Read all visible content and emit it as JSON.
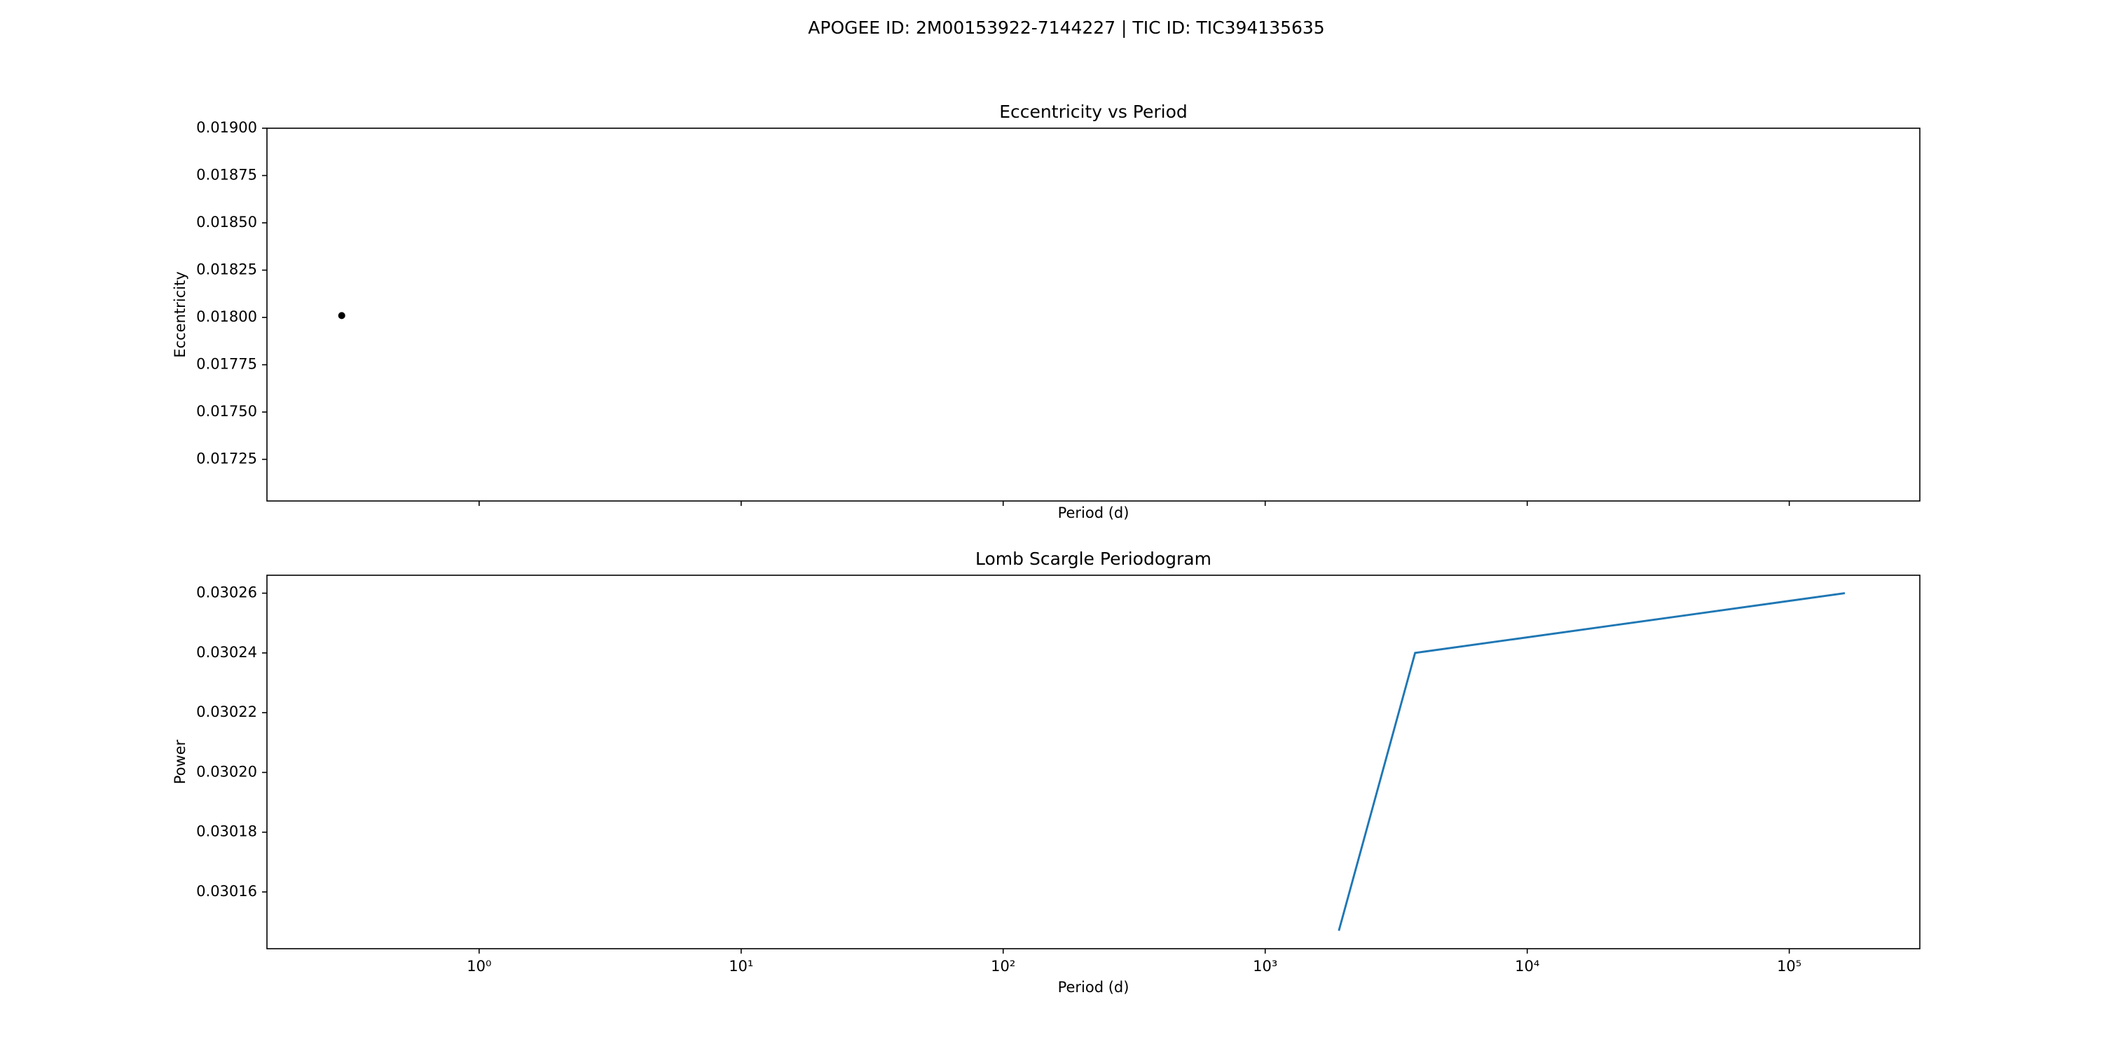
{
  "title": "APOGEE ID: 2M00153922-7144227 | TIC ID: TIC394135635",
  "chart_data": [
    {
      "type": "scatter",
      "title": "Eccentricity vs Period",
      "x_label": "Period (d)",
      "y_label": "Eccentricity",
      "x": [
        0.299
      ],
      "values": [
        0.01801
      ],
      "color": "#000000",
      "x_log": true,
      "xlim": [
        0.155,
        315000
      ],
      "xticks": [
        1,
        10,
        100,
        1000,
        10000,
        100000
      ],
      "show_xtick_labels": false,
      "ylim": [
        0.01703,
        0.019
      ],
      "yticks": [
        {
          "value": 0.01725,
          "label": "0.01725"
        },
        {
          "value": 0.0175,
          "label": "0.01750"
        },
        {
          "value": 0.01775,
          "label": "0.01775"
        },
        {
          "value": 0.018,
          "label": "0.01800"
        },
        {
          "value": 0.01825,
          "label": "0.01825"
        },
        {
          "value": 0.0185,
          "label": "0.01850"
        },
        {
          "value": 0.01875,
          "label": "0.01875"
        },
        {
          "value": 0.019,
          "label": "0.01900"
        }
      ]
    },
    {
      "type": "line",
      "title": "Lomb Scargle Periodogram",
      "x_label": "Period (d)",
      "y_label": "Power",
      "x": [
        1910,
        3733,
        163000
      ],
      "values": [
        0.030147,
        0.03024,
        0.03026
      ],
      "color": "#1f77b4",
      "x_log": true,
      "xlim": [
        0.155,
        315000
      ],
      "xticks": [
        {
          "value": 1,
          "label": "10⁰"
        },
        {
          "value": 10,
          "label": "10¹"
        },
        {
          "value": 100,
          "label": "10²"
        },
        {
          "value": 1000,
          "label": "10³"
        },
        {
          "value": 10000,
          "label": "10⁴"
        },
        {
          "value": 100000,
          "label": "10⁵"
        }
      ],
      "show_xtick_labels": true,
      "ylim": [
        0.030141,
        0.030266
      ],
      "yticks": [
        {
          "value": 0.03016,
          "label": "0.03016"
        },
        {
          "value": 0.03018,
          "label": "0.03018"
        },
        {
          "value": 0.0302,
          "label": "0.03020"
        },
        {
          "value": 0.03022,
          "label": "0.03022"
        },
        {
          "value": 0.03024,
          "label": "0.03024"
        },
        {
          "value": 0.03026,
          "label": "0.03026"
        }
      ]
    }
  ]
}
